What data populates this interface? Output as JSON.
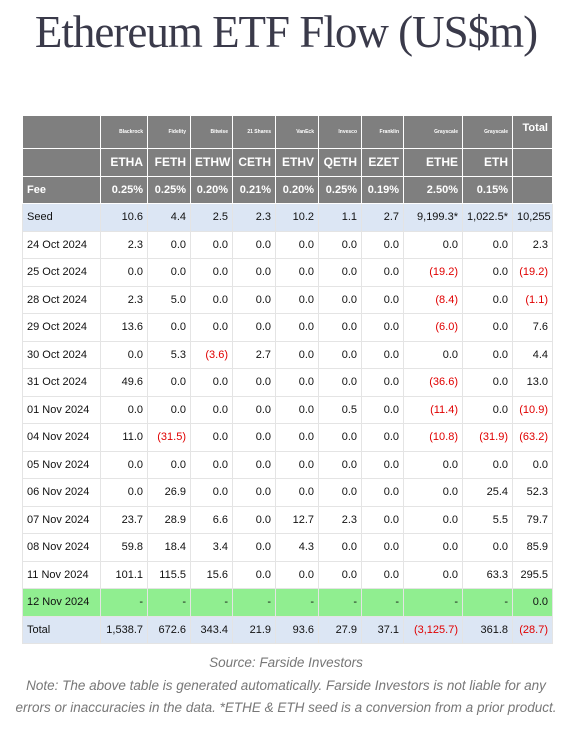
{
  "header": {
    "title": "Ethereum ETF Flow (US$m)"
  },
  "table": {
    "issuers": [
      "Blackrock",
      "Fidelity",
      "Bitwise",
      "21 Shares",
      "VanEck",
      "Invesco",
      "Franklin",
      "Grayscale",
      "Grayscale"
    ],
    "total_label": "Total",
    "tickers": [
      "ETHA",
      "FETH",
      "ETHW",
      "CETH",
      "ETHV",
      "QETH",
      "EZET",
      "ETHE",
      "ETH"
    ],
    "fee_label": "Fee",
    "fees": [
      "0.25%",
      "0.25%",
      "0.20%",
      "0.21%",
      "0.20%",
      "0.25%",
      "0.19%",
      "2.50%",
      "0.15%"
    ],
    "rows": [
      {
        "label": "Seed",
        "values": [
          "10.6",
          "4.4",
          "2.5",
          "2.3",
          "10.2",
          "1.1",
          "2.7",
          "9,199.3*",
          "1,022.5*",
          "10,255"
        ]
      },
      {
        "label": "24 Oct 2024",
        "values": [
          "2.3",
          "0.0",
          "0.0",
          "0.0",
          "0.0",
          "0.0",
          "0.0",
          "0.0",
          "0.0",
          "2.3"
        ]
      },
      {
        "label": "25 Oct 2024",
        "values": [
          "0.0",
          "0.0",
          "0.0",
          "0.0",
          "0.0",
          "0.0",
          "0.0",
          "(19.2)",
          "0.0",
          "(19.2)"
        ]
      },
      {
        "label": "28 Oct 2024",
        "values": [
          "2.3",
          "5.0",
          "0.0",
          "0.0",
          "0.0",
          "0.0",
          "0.0",
          "(8.4)",
          "0.0",
          "(1.1)"
        ]
      },
      {
        "label": "29 Oct 2024",
        "values": [
          "13.6",
          "0.0",
          "0.0",
          "0.0",
          "0.0",
          "0.0",
          "0.0",
          "(6.0)",
          "0.0",
          "7.6"
        ]
      },
      {
        "label": "30 Oct 2024",
        "values": [
          "0.0",
          "5.3",
          "(3.6)",
          "2.7",
          "0.0",
          "0.0",
          "0.0",
          "0.0",
          "0.0",
          "4.4"
        ]
      },
      {
        "label": "31 Oct 2024",
        "values": [
          "49.6",
          "0.0",
          "0.0",
          "0.0",
          "0.0",
          "0.0",
          "0.0",
          "(36.6)",
          "0.0",
          "13.0"
        ]
      },
      {
        "label": "01 Nov 2024",
        "values": [
          "0.0",
          "0.0",
          "0.0",
          "0.0",
          "0.0",
          "0.5",
          "0.0",
          "(11.4)",
          "0.0",
          "(10.9)"
        ]
      },
      {
        "label": "04 Nov 2024",
        "values": [
          "11.0",
          "(31.5)",
          "0.0",
          "0.0",
          "0.0",
          "0.0",
          "0.0",
          "(10.8)",
          "(31.9)",
          "(63.2)"
        ]
      },
      {
        "label": "05 Nov 2024",
        "values": [
          "0.0",
          "0.0",
          "0.0",
          "0.0",
          "0.0",
          "0.0",
          "0.0",
          "0.0",
          "0.0",
          "0.0"
        ]
      },
      {
        "label": "06 Nov 2024",
        "values": [
          "0.0",
          "26.9",
          "0.0",
          "0.0",
          "0.0",
          "0.0",
          "0.0",
          "0.0",
          "25.4",
          "52.3"
        ]
      },
      {
        "label": "07 Nov 2024",
        "values": [
          "23.7",
          "28.9",
          "6.6",
          "0.0",
          "12.7",
          "2.3",
          "0.0",
          "0.0",
          "5.5",
          "79.7"
        ]
      },
      {
        "label": "08 Nov 2024",
        "values": [
          "59.8",
          "18.4",
          "3.4",
          "0.0",
          "4.3",
          "0.0",
          "0.0",
          "0.0",
          "0.0",
          "85.9"
        ]
      },
      {
        "label": "11 Nov 2024",
        "values": [
          "101.1",
          "115.5",
          "15.6",
          "0.0",
          "0.0",
          "0.0",
          "0.0",
          "0.0",
          "63.3",
          "295.5"
        ]
      },
      {
        "label": "12 Nov 2024",
        "values": [
          "-",
          "-",
          "-",
          "-",
          "-",
          "-",
          "-",
          "-",
          "-",
          "0.0"
        ]
      },
      {
        "label": "Total",
        "values": [
          "1,538.7",
          "672.6",
          "343.4",
          "21.9",
          "93.6",
          "27.9",
          "37.1",
          "(3,125.7)",
          "361.8",
          "(28.7)"
        ]
      }
    ]
  },
  "footer": {
    "source": "Source: Farside Investors",
    "note": "Note: The above table is generated automatically. Farside Investors is not liable for any errors or inaccuracies in the data. *ETHE & ETH seed is a conversion from a prior product."
  }
}
